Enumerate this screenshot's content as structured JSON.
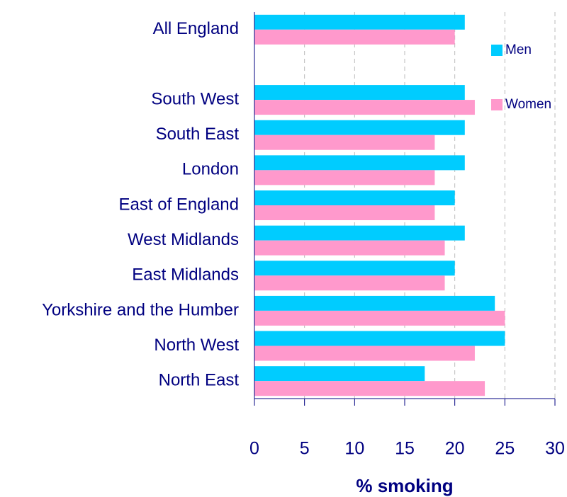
{
  "chart_data": {
    "type": "hbar",
    "x_label": "% smoking",
    "categories": [
      "All England",
      null,
      "South West",
      "South East",
      "London",
      "East of England",
      "West Midlands",
      "East Midlands",
      "Yorkshire and the Humber",
      "North West",
      "North East"
    ],
    "series": [
      {
        "name": "Men",
        "color": "#00ccff",
        "values": [
          21,
          null,
          21,
          21,
          21,
          20,
          21,
          20,
          24,
          25,
          17
        ]
      },
      {
        "name": "Women",
        "color": "#ff99cc",
        "values": [
          20,
          null,
          22,
          18,
          18,
          18,
          19,
          19,
          25,
          22,
          23
        ]
      }
    ],
    "xlim": [
      0,
      30
    ],
    "xticks": [
      0,
      5,
      10,
      15,
      20,
      25,
      30
    ],
    "grid": true,
    "legend": "right"
  }
}
